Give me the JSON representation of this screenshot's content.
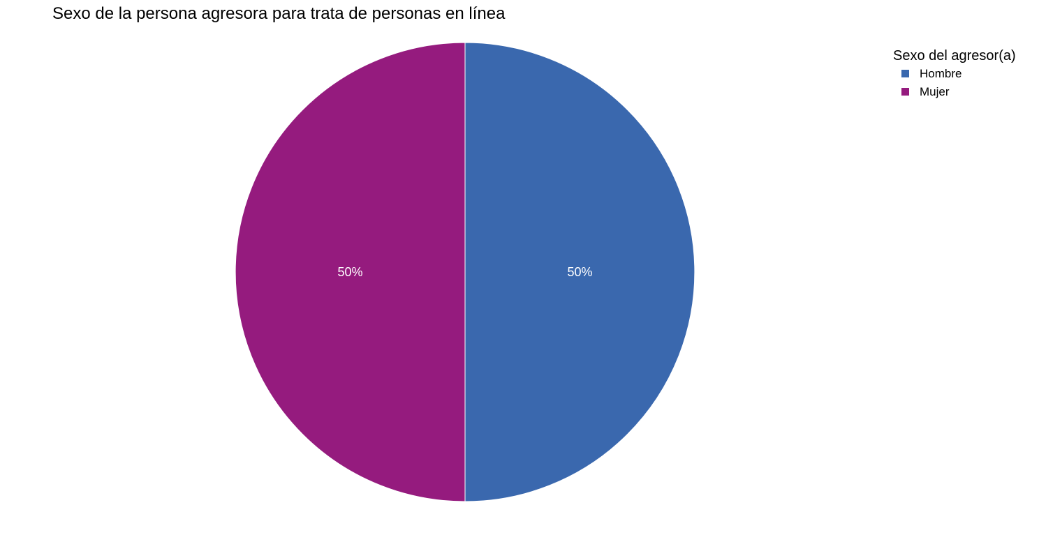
{
  "chart_data": {
    "type": "pie",
    "title": "Sexo de la persona agresora para trata de personas en línea",
    "legend_title": "Sexo del agresor(a)",
    "legend_position": "top-right",
    "slices": [
      {
        "name": "Hombre",
        "value": 50,
        "label": "50%",
        "color": "#3A68AE"
      },
      {
        "name": "Mujer",
        "value": 50,
        "label": "50%",
        "color": "#951B7E"
      }
    ]
  }
}
